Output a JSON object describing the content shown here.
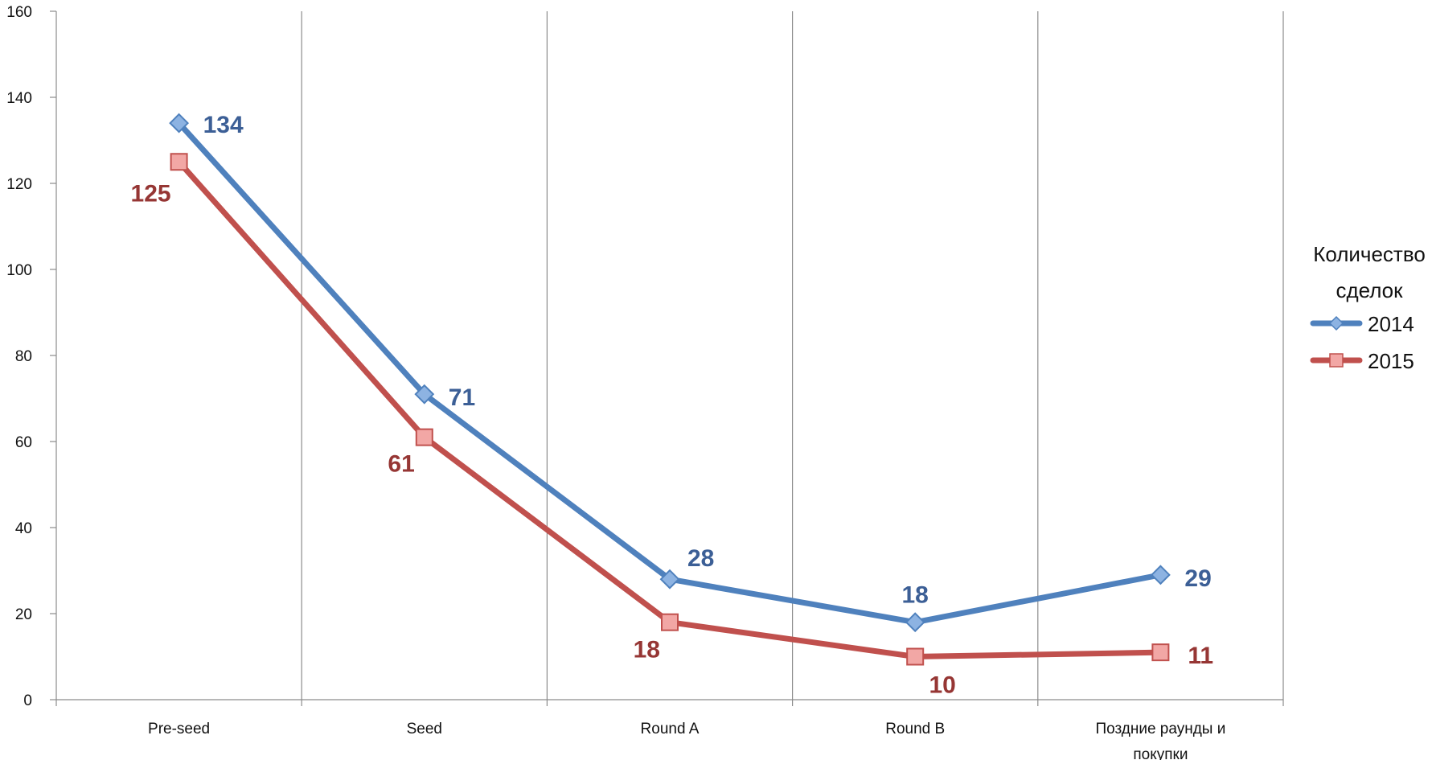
{
  "chart_data": {
    "type": "line",
    "categories": [
      "Pre-seed",
      "Seed",
      "Round A",
      "Round B",
      "Поздние раунды и покупки"
    ],
    "category_lines": [
      [
        "Pre-seed"
      ],
      [
        "Seed"
      ],
      [
        "Round A"
      ],
      [
        "Round B"
      ],
      [
        "Поздние раунды и",
        "покупки"
      ]
    ],
    "ylim": [
      0,
      160
    ],
    "yticks": [
      "0",
      "20",
      "40",
      "60",
      "80",
      "100",
      "120",
      "140",
      "160"
    ],
    "grid": "vertical",
    "legend": {
      "title_lines": [
        "Количество",
        "сделок"
      ],
      "placement": "right"
    },
    "series": [
      {
        "name": "2014",
        "values": [
          134,
          71,
          28,
          18,
          29
        ],
        "color": "#4F81BD",
        "label_color": "#3C5F96",
        "marker": "diamond"
      },
      {
        "name": "2015",
        "values": [
          125,
          61,
          18,
          10,
          11
        ],
        "color": "#C0504D",
        "label_color": "#963634",
        "marker": "square"
      }
    ]
  }
}
